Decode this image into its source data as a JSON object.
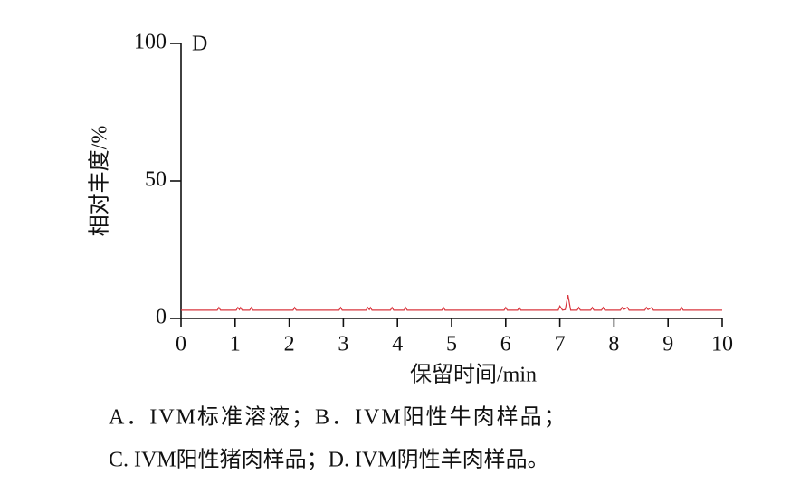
{
  "chart_data": {
    "type": "line",
    "annotation": "D",
    "xlabel": "保留时间/min",
    "ylabel": "相对丰度/%",
    "color": "#d9363e",
    "x": [
      0,
      0.67,
      0.7,
      0.73,
      1.02,
      1.05,
      1.08,
      1.1,
      1.13,
      1.27,
      1.3,
      1.33,
      2.07,
      2.1,
      2.13,
      2.92,
      2.95,
      2.98,
      3.42,
      3.45,
      3.48,
      3.5,
      3.53,
      3.87,
      3.9,
      3.93,
      4.12,
      4.15,
      4.18,
      4.82,
      4.85,
      4.88,
      5.97,
      6.0,
      6.03,
      6.22,
      6.25,
      6.28,
      6.97,
      7.0,
      7.05,
      7.1,
      7.15,
      7.2,
      7.32,
      7.35,
      7.38,
      7.57,
      7.6,
      7.63,
      7.77,
      7.8,
      7.83,
      8.12,
      8.15,
      8.18,
      8.25,
      8.28,
      8.57,
      8.6,
      8.63,
      8.7,
      8.73,
      9.22,
      9.25,
      9.28,
      10
    ],
    "values": [
      3,
      3,
      4,
      3,
      3,
      4,
      3.2,
      4,
      3,
      3,
      4,
      3,
      3,
      4,
      3,
      3,
      4,
      3,
      3,
      4,
      3.2,
      4,
      3,
      3,
      4,
      3,
      3,
      4,
      3,
      3,
      4,
      3,
      3,
      4,
      3,
      3,
      4,
      3,
      3,
      4.5,
      3,
      3.2,
      8.5,
      3,
      3,
      4,
      3,
      3,
      4,
      3,
      3,
      4,
      3,
      3,
      4,
      3.2,
      4,
      3,
      3,
      4,
      3.2,
      4,
      3,
      3,
      4,
      3,
      3
    ],
    "xlim": [
      0,
      10
    ],
    "xticks": [
      0,
      1,
      2,
      3,
      4,
      5,
      6,
      7,
      8,
      9,
      10
    ],
    "ylim": [
      0,
      100
    ],
    "yticks": [
      0,
      50,
      100
    ]
  },
  "caption": [
    "A．IVM标准溶液；B．IVM阳性牛肉样品；",
    "C. IVM阳性猪肉样品；D. IVM阴性羊肉样品。"
  ]
}
